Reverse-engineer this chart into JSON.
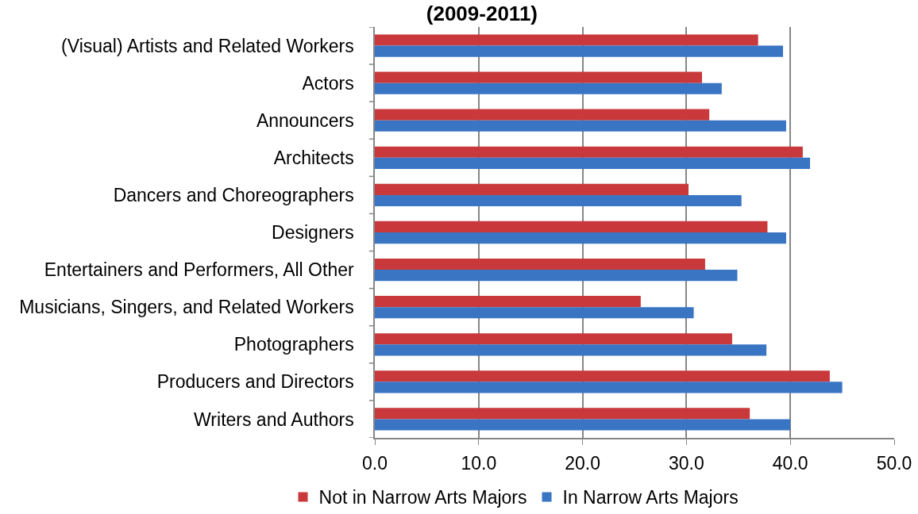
{
  "chart_data": {
    "type": "bar",
    "orientation": "horizontal",
    "title": "(2009-2011)",
    "categories": [
      "(Visual) Artists and Related Workers",
      "Actors",
      "Announcers",
      "Architects",
      "Dancers and Choreographers",
      "Designers",
      "Entertainers and Performers, All Other",
      "Musicians, Singers, and Related Workers",
      "Photographers",
      "Producers and Directors",
      "Writers and Authors"
    ],
    "series": [
      {
        "name": "Not in Narrow Arts Majors",
        "color": "#c9383a",
        "values": [
          36.9,
          31.5,
          32.2,
          41.2,
          30.2,
          37.8,
          31.8,
          25.6,
          34.4,
          43.8,
          36.1
        ]
      },
      {
        "name": "In Narrow Arts Majors",
        "color": "#3a75c4",
        "values": [
          39.3,
          33.4,
          39.6,
          41.9,
          35.3,
          39.6,
          34.9,
          30.7,
          37.7,
          45.0,
          40.0
        ]
      }
    ],
    "xlim": [
      0,
      50
    ],
    "xticks": [
      {
        "value": 0,
        "label": "0.0"
      },
      {
        "value": 10,
        "label": "10.0"
      },
      {
        "value": 20,
        "label": "20.0"
      },
      {
        "value": 30,
        "label": "30.0"
      },
      {
        "value": 40,
        "label": "40.0"
      },
      {
        "value": 50,
        "label": "50.0"
      }
    ],
    "grid": "x",
    "legend": "bottom"
  }
}
